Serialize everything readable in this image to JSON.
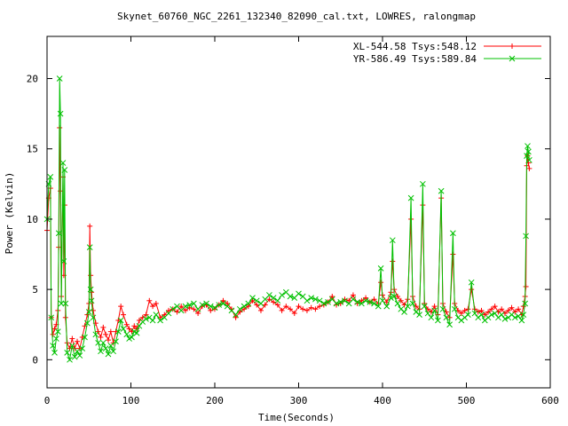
{
  "chart_data": {
    "type": "line",
    "title": "Skynet_60760_NGC_2261_132340_82090_cal.txt, LOWRES, ralongmap",
    "xlabel": "Time(Seconds)",
    "ylabel": "Power (Kelvin)",
    "xlim": [
      0,
      600
    ],
    "ylim": [
      -2,
      23
    ],
    "x_ticks": [
      "0",
      "100",
      "200",
      "300",
      "400",
      "500",
      "600"
    ],
    "y_ticks": [
      "0",
      "5",
      "10",
      "15",
      "20"
    ],
    "grid": false,
    "legend_position": "top-right",
    "series": [
      {
        "name": "XL-544.58 Tsys:548.12",
        "color": "#ff0000",
        "marker": "plus",
        "points": [
          [
            0,
            9.2
          ],
          [
            2,
            11.5
          ],
          [
            4,
            12.2
          ],
          [
            5,
            3.0
          ],
          [
            7,
            1.8
          ],
          [
            9,
            2.2
          ],
          [
            11,
            2.5
          ],
          [
            13,
            3.5
          ],
          [
            14,
            8.0
          ],
          [
            15,
            16.5
          ],
          [
            16,
            12.0
          ],
          [
            17,
            4.5
          ],
          [
            19,
            13.0
          ],
          [
            20,
            6.0
          ],
          [
            21,
            11.0
          ],
          [
            22,
            3.0
          ],
          [
            24,
            1.2
          ],
          [
            27,
            0.8
          ],
          [
            30,
            1.5
          ],
          [
            33,
            0.8
          ],
          [
            36,
            1.3
          ],
          [
            39,
            0.8
          ],
          [
            42,
            1.6
          ],
          [
            45,
            2.4
          ],
          [
            48,
            3.2
          ],
          [
            50,
            4.0
          ],
          [
            51,
            9.5
          ],
          [
            52,
            6.0
          ],
          [
            53,
            4.8
          ],
          [
            55,
            3.5
          ],
          [
            58,
            2.6
          ],
          [
            61,
            2.0
          ],
          [
            64,
            1.6
          ],
          [
            67,
            2.3
          ],
          [
            70,
            1.8
          ],
          [
            73,
            1.4
          ],
          [
            76,
            2.0
          ],
          [
            79,
            1.2
          ],
          [
            82,
            2.0
          ],
          [
            85,
            2.8
          ],
          [
            88,
            3.8
          ],
          [
            91,
            3.2
          ],
          [
            95,
            2.5
          ],
          [
            98,
            2.2
          ],
          [
            101,
            2.0
          ],
          [
            104,
            2.4
          ],
          [
            107,
            2.2
          ],
          [
            110,
            2.8
          ],
          [
            114,
            3.0
          ],
          [
            118,
            3.2
          ],
          [
            122,
            4.2
          ],
          [
            126,
            3.8
          ],
          [
            130,
            4.0
          ],
          [
            135,
            3.0
          ],
          [
            140,
            3.2
          ],
          [
            145,
            3.5
          ],
          [
            150,
            3.6
          ],
          [
            155,
            3.4
          ],
          [
            160,
            3.8
          ],
          [
            165,
            3.5
          ],
          [
            170,
            3.7
          ],
          [
            175,
            3.6
          ],
          [
            180,
            3.3
          ],
          [
            185,
            3.8
          ],
          [
            190,
            3.9
          ],
          [
            195,
            3.5
          ],
          [
            200,
            3.6
          ],
          [
            205,
            3.9
          ],
          [
            210,
            4.2
          ],
          [
            215,
            4.0
          ],
          [
            220,
            3.6
          ],
          [
            225,
            3.0
          ],
          [
            230,
            3.4
          ],
          [
            235,
            3.6
          ],
          [
            240,
            3.8
          ],
          [
            245,
            4.2
          ],
          [
            250,
            3.9
          ],
          [
            255,
            3.5
          ],
          [
            260,
            3.9
          ],
          [
            265,
            4.3
          ],
          [
            270,
            4.1
          ],
          [
            275,
            3.9
          ],
          [
            280,
            3.5
          ],
          [
            285,
            3.8
          ],
          [
            290,
            3.6
          ],
          [
            295,
            3.3
          ],
          [
            300,
            3.8
          ],
          [
            305,
            3.6
          ],
          [
            310,
            3.5
          ],
          [
            315,
            3.7
          ],
          [
            320,
            3.6
          ],
          [
            325,
            3.8
          ],
          [
            330,
            3.9
          ],
          [
            335,
            4.1
          ],
          [
            340,
            4.5
          ],
          [
            345,
            3.9
          ],
          [
            350,
            4.0
          ],
          [
            355,
            4.3
          ],
          [
            360,
            4.2
          ],
          [
            365,
            4.6
          ],
          [
            370,
            4.0
          ],
          [
            375,
            4.2
          ],
          [
            380,
            4.4
          ],
          [
            385,
            4.1
          ],
          [
            390,
            4.3
          ],
          [
            395,
            4.0
          ],
          [
            398,
            5.5
          ],
          [
            400,
            4.6
          ],
          [
            405,
            4.1
          ],
          [
            410,
            4.8
          ],
          [
            412,
            7.0
          ],
          [
            414,
            5.0
          ],
          [
            418,
            4.5
          ],
          [
            422,
            4.2
          ],
          [
            426,
            3.9
          ],
          [
            430,
            4.3
          ],
          [
            434,
            10.0
          ],
          [
            436,
            4.5
          ],
          [
            440,
            3.8
          ],
          [
            444,
            3.6
          ],
          [
            448,
            11.0
          ],
          [
            450,
            4.0
          ],
          [
            454,
            3.6
          ],
          [
            458,
            3.4
          ],
          [
            462,
            3.8
          ],
          [
            466,
            3.2
          ],
          [
            470,
            11.5
          ],
          [
            472,
            4.0
          ],
          [
            476,
            3.4
          ],
          [
            480,
            3.0
          ],
          [
            484,
            7.5
          ],
          [
            486,
            4.0
          ],
          [
            490,
            3.5
          ],
          [
            494,
            3.3
          ],
          [
            498,
            3.5
          ],
          [
            502,
            3.6
          ],
          [
            506,
            5.0
          ],
          [
            510,
            3.6
          ],
          [
            514,
            3.4
          ],
          [
            518,
            3.5
          ],
          [
            522,
            3.2
          ],
          [
            526,
            3.4
          ],
          [
            530,
            3.6
          ],
          [
            534,
            3.8
          ],
          [
            538,
            3.4
          ],
          [
            542,
            3.6
          ],
          [
            546,
            3.3
          ],
          [
            550,
            3.5
          ],
          [
            554,
            3.7
          ],
          [
            558,
            3.4
          ],
          [
            562,
            3.6
          ],
          [
            566,
            3.2
          ],
          [
            568,
            3.8
          ],
          [
            570,
            4.5
          ],
          [
            571,
            5.2
          ],
          [
            572,
            13.8
          ],
          [
            573,
            14.5
          ],
          [
            574,
            14.0
          ],
          [
            575,
            13.6
          ]
        ]
      },
      {
        "name": "YR-586.49 Tsys:589.84",
        "color": "#00c000",
        "marker": "cross",
        "points": [
          [
            0,
            10.0
          ],
          [
            2,
            12.5
          ],
          [
            4,
            13.0
          ],
          [
            5,
            3.0
          ],
          [
            7,
            1.0
          ],
          [
            9,
            0.5
          ],
          [
            11,
            1.5
          ],
          [
            13,
            2.0
          ],
          [
            14,
            9.0
          ],
          [
            15,
            20.0
          ],
          [
            16,
            17.5
          ],
          [
            17,
            4.0
          ],
          [
            19,
            14.0
          ],
          [
            20,
            7.0
          ],
          [
            21,
            13.5
          ],
          [
            22,
            4.0
          ],
          [
            24,
            0.5
          ],
          [
            27,
            0.0
          ],
          [
            30,
            1.0
          ],
          [
            33,
            0.2
          ],
          [
            36,
            0.6
          ],
          [
            39,
            0.3
          ],
          [
            42,
            0.8
          ],
          [
            45,
            1.6
          ],
          [
            48,
            2.6
          ],
          [
            50,
            3.4
          ],
          [
            51,
            8.0
          ],
          [
            52,
            5.0
          ],
          [
            53,
            4.2
          ],
          [
            55,
            3.0
          ],
          [
            58,
            1.8
          ],
          [
            61,
            1.2
          ],
          [
            64,
            0.6
          ],
          [
            67,
            1.2
          ],
          [
            70,
            0.8
          ],
          [
            73,
            0.4
          ],
          [
            76,
            1.0
          ],
          [
            79,
            0.6
          ],
          [
            82,
            1.3
          ],
          [
            85,
            2.0
          ],
          [
            88,
            2.8
          ],
          [
            91,
            2.2
          ],
          [
            95,
            1.8
          ],
          [
            98,
            1.5
          ],
          [
            101,
            1.6
          ],
          [
            104,
            2.0
          ],
          [
            107,
            1.9
          ],
          [
            110,
            2.4
          ],
          [
            114,
            2.7
          ],
          [
            118,
            2.9
          ],
          [
            122,
            3.0
          ],
          [
            126,
            2.8
          ],
          [
            130,
            3.2
          ],
          [
            135,
            2.8
          ],
          [
            140,
            3.0
          ],
          [
            145,
            3.3
          ],
          [
            150,
            3.6
          ],
          [
            155,
            3.8
          ],
          [
            160,
            3.5
          ],
          [
            165,
            3.8
          ],
          [
            170,
            3.9
          ],
          [
            175,
            4.0
          ],
          [
            180,
            3.6
          ],
          [
            185,
            3.9
          ],
          [
            190,
            4.0
          ],
          [
            195,
            3.8
          ],
          [
            200,
            3.7
          ],
          [
            205,
            3.9
          ],
          [
            210,
            4.0
          ],
          [
            215,
            3.8
          ],
          [
            220,
            3.5
          ],
          [
            225,
            3.2
          ],
          [
            230,
            3.6
          ],
          [
            235,
            3.8
          ],
          [
            240,
            4.0
          ],
          [
            245,
            4.4
          ],
          [
            250,
            4.2
          ],
          [
            255,
            4.0
          ],
          [
            260,
            4.3
          ],
          [
            265,
            4.6
          ],
          [
            270,
            4.4
          ],
          [
            275,
            4.2
          ],
          [
            280,
            4.6
          ],
          [
            285,
            4.8
          ],
          [
            290,
            4.5
          ],
          [
            295,
            4.4
          ],
          [
            300,
            4.7
          ],
          [
            305,
            4.5
          ],
          [
            310,
            4.2
          ],
          [
            315,
            4.4
          ],
          [
            320,
            4.3
          ],
          [
            325,
            4.2
          ],
          [
            330,
            4.0
          ],
          [
            335,
            4.1
          ],
          [
            340,
            4.3
          ],
          [
            345,
            4.0
          ],
          [
            350,
            4.1
          ],
          [
            355,
            4.2
          ],
          [
            360,
            4.0
          ],
          [
            365,
            4.3
          ],
          [
            370,
            4.1
          ],
          [
            375,
            4.0
          ],
          [
            380,
            4.2
          ],
          [
            385,
            4.1
          ],
          [
            390,
            4.0
          ],
          [
            395,
            3.8
          ],
          [
            398,
            6.5
          ],
          [
            400,
            4.2
          ],
          [
            405,
            3.8
          ],
          [
            410,
            4.4
          ],
          [
            412,
            8.5
          ],
          [
            414,
            4.5
          ],
          [
            418,
            4.0
          ],
          [
            422,
            3.6
          ],
          [
            426,
            3.4
          ],
          [
            430,
            3.8
          ],
          [
            434,
            11.5
          ],
          [
            436,
            4.0
          ],
          [
            440,
            3.4
          ],
          [
            444,
            3.2
          ],
          [
            448,
            12.5
          ],
          [
            450,
            3.8
          ],
          [
            454,
            3.3
          ],
          [
            458,
            3.0
          ],
          [
            462,
            3.5
          ],
          [
            466,
            2.8
          ],
          [
            470,
            12.0
          ],
          [
            472,
            3.6
          ],
          [
            476,
            3.0
          ],
          [
            480,
            2.5
          ],
          [
            484,
            9.0
          ],
          [
            486,
            3.6
          ],
          [
            490,
            3.0
          ],
          [
            494,
            2.8
          ],
          [
            498,
            3.0
          ],
          [
            502,
            3.2
          ],
          [
            506,
            5.5
          ],
          [
            510,
            3.3
          ],
          [
            514,
            3.0
          ],
          [
            518,
            3.2
          ],
          [
            522,
            2.8
          ],
          [
            526,
            3.0
          ],
          [
            530,
            3.2
          ],
          [
            534,
            3.3
          ],
          [
            538,
            3.0
          ],
          [
            542,
            3.2
          ],
          [
            546,
            2.9
          ],
          [
            550,
            3.0
          ],
          [
            554,
            3.2
          ],
          [
            558,
            3.0
          ],
          [
            562,
            3.1
          ],
          [
            566,
            2.8
          ],
          [
            568,
            3.2
          ],
          [
            570,
            4.0
          ],
          [
            571,
            8.8
          ],
          [
            572,
            14.5
          ],
          [
            573,
            15.2
          ],
          [
            574,
            14.8
          ],
          [
            575,
            14.2
          ]
        ]
      }
    ]
  }
}
